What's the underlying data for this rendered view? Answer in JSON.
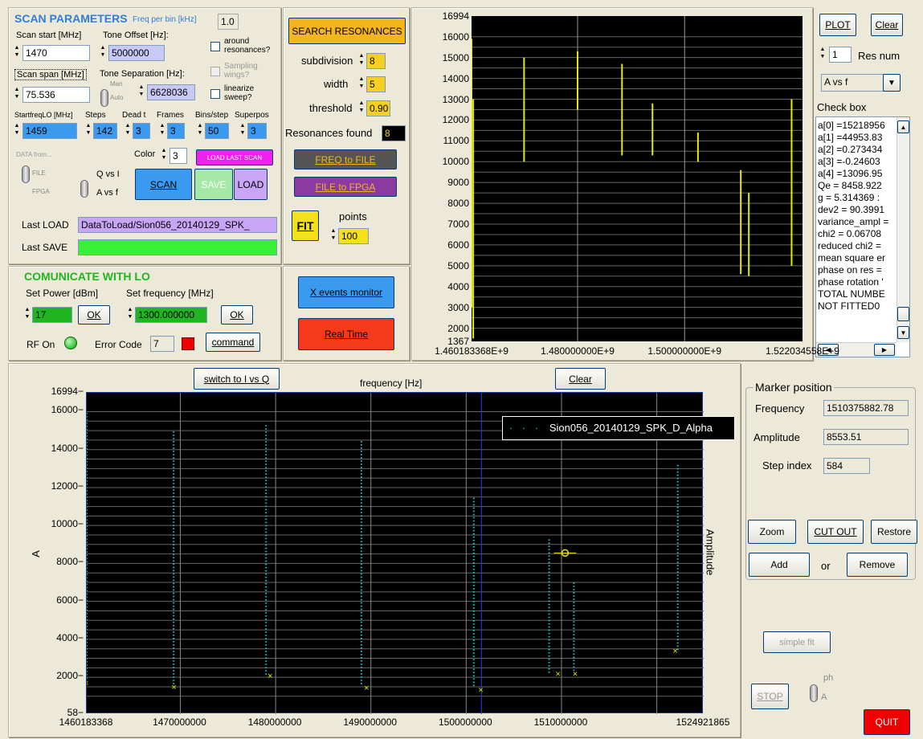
{
  "scan": {
    "title": "SCAN PARAMETERS",
    "freq_per_bin_label": "Freq per bin [kHz]",
    "freq_per_bin": "1.0",
    "scan_start_label": "Scan start [MHz]",
    "scan_start": "1470",
    "tone_offset_label": "Tone Offset [Hz]:",
    "tone_offset": "5000000",
    "around_label": "around resonances?",
    "scan_span_label": "Scan span [MHz]",
    "scan_span": "75.536",
    "tone_sep_label": "Tone Separation [Hz]:",
    "tone_sep": "6628036",
    "sampling_label": "Sampling wings?",
    "linearize_label": "linearize sweep?",
    "man": "Man",
    "auto": "Auto",
    "startfreq_label": "StartfreqLO [MHz]",
    "startfreq": "1459",
    "steps_label": "Steps",
    "steps": "142",
    "dead_label": "Dead t",
    "dead": "3",
    "frames_label": "Frames",
    "frames": "3",
    "bins_label": "Bins/step",
    "bins": "50",
    "superpos_label": "Superpos",
    "superpos": "3",
    "data_from": "DATA from...",
    "file": "FILE",
    "fpga": "FPGA",
    "qvsi": "Q vs I",
    "avsf": "A vs f",
    "color_label": "Color",
    "color": "3",
    "load_last": "LOAD LAST SCAN",
    "scan_btn": "SCAN",
    "save_btn": "SAVE",
    "load_btn": "LOAD",
    "last_load_label": "Last LOAD",
    "last_load": "DataToLoad/Sion056_20140129_SPK_",
    "last_save_label": "Last SAVE"
  },
  "res": {
    "search": "SEARCH RESONANCES",
    "subdivision_label": "subdivision",
    "subdivision": "8",
    "width_label": "width",
    "width": "5",
    "threshold_label": "threshold",
    "threshold": "0.90",
    "found_label": "Resonances found",
    "found": "8",
    "freq_to_file": "FREQ to FILE",
    "file_to_fpga": "FILE to FPGA",
    "fit": "FIT",
    "points_label": "points",
    "points": "100"
  },
  "lo": {
    "title": "COMUNICATE WITH LO",
    "power_label": "Set Power [dBm]",
    "power": "17",
    "freq_label": "Set frequency [MHz]",
    "freq": "1300.000000",
    "ok": "OK",
    "rf_label": "RF On",
    "err_label": "Error Code",
    "err": "7",
    "command": "command",
    "xevents": "X events monitor",
    "realtime": "Real Time"
  },
  "top_graph": {
    "yticks": [
      "16994",
      "16000",
      "15000",
      "14000",
      "13000",
      "12000",
      "11000",
      "10000",
      "9000",
      "8000",
      "7000",
      "6000",
      "5000",
      "4000",
      "3000",
      "2000",
      "1367"
    ],
    "xticks": [
      "1.460183368E+9",
      "1.480000000E+9",
      "1.500000000E+9",
      "1.522034558E+9"
    ]
  },
  "right": {
    "plot": "PLOT",
    "clear": "Clear",
    "res_num": "1",
    "res_num_label": "Res num",
    "mode": "A vs f",
    "checkbox_label": "Check box",
    "lines": [
      "a[0] =15218956",
      "a[1] =44953.83",
      "a[2] =0.273434",
      "a[3] =-0.24603",
      "a[4] =13096.95",
      "Qe = 8458.922",
      "g = 5.314369 :",
      "dev2 = 90.3991",
      "variance_ampl =",
      "chi2 = 0.06708",
      "reduced chi2 =",
      "mean square er",
      "phase on res =",
      "phase rotation '",
      "TOTAL NUMBE",
      "NOT FITTED0"
    ]
  },
  "main_graph": {
    "switch": "switch to I vs Q",
    "xlabel": "frequency [Hz]",
    "clear": "Clear",
    "ylabel": "A",
    "right_label": "Amplitude",
    "legend": "Sion056_20140129_SPK_D_Alpha",
    "yticks": [
      "16994",
      "16000",
      "14000",
      "12000",
      "10000",
      "8000",
      "6000",
      "4000",
      "2000",
      "58"
    ],
    "xticks": [
      "1460183368",
      "1470000000",
      "1480000000",
      "1490000000",
      "1500000000",
      "1510000000",
      "1524921865"
    ]
  },
  "marker": {
    "title": "Marker position",
    "freq_label": "Frequency",
    "freq": "1510375882.78",
    "amp_label": "Amplitude",
    "amp": "8553.51",
    "step_label": "Step index",
    "step": "584",
    "zoom": "Zoom",
    "cutout": "CUT OUT",
    "restore": "Restore",
    "add": "Add",
    "or": "or",
    "remove": "Remove",
    "simple_fit": "simple fit",
    "stop": "STOP",
    "ph": "ph",
    "a": "A",
    "quit": "QUIT"
  },
  "colors": {
    "trace_top": "#e8e800",
    "trace_main": "#20c8c8",
    "marker": "#e8e800"
  }
}
